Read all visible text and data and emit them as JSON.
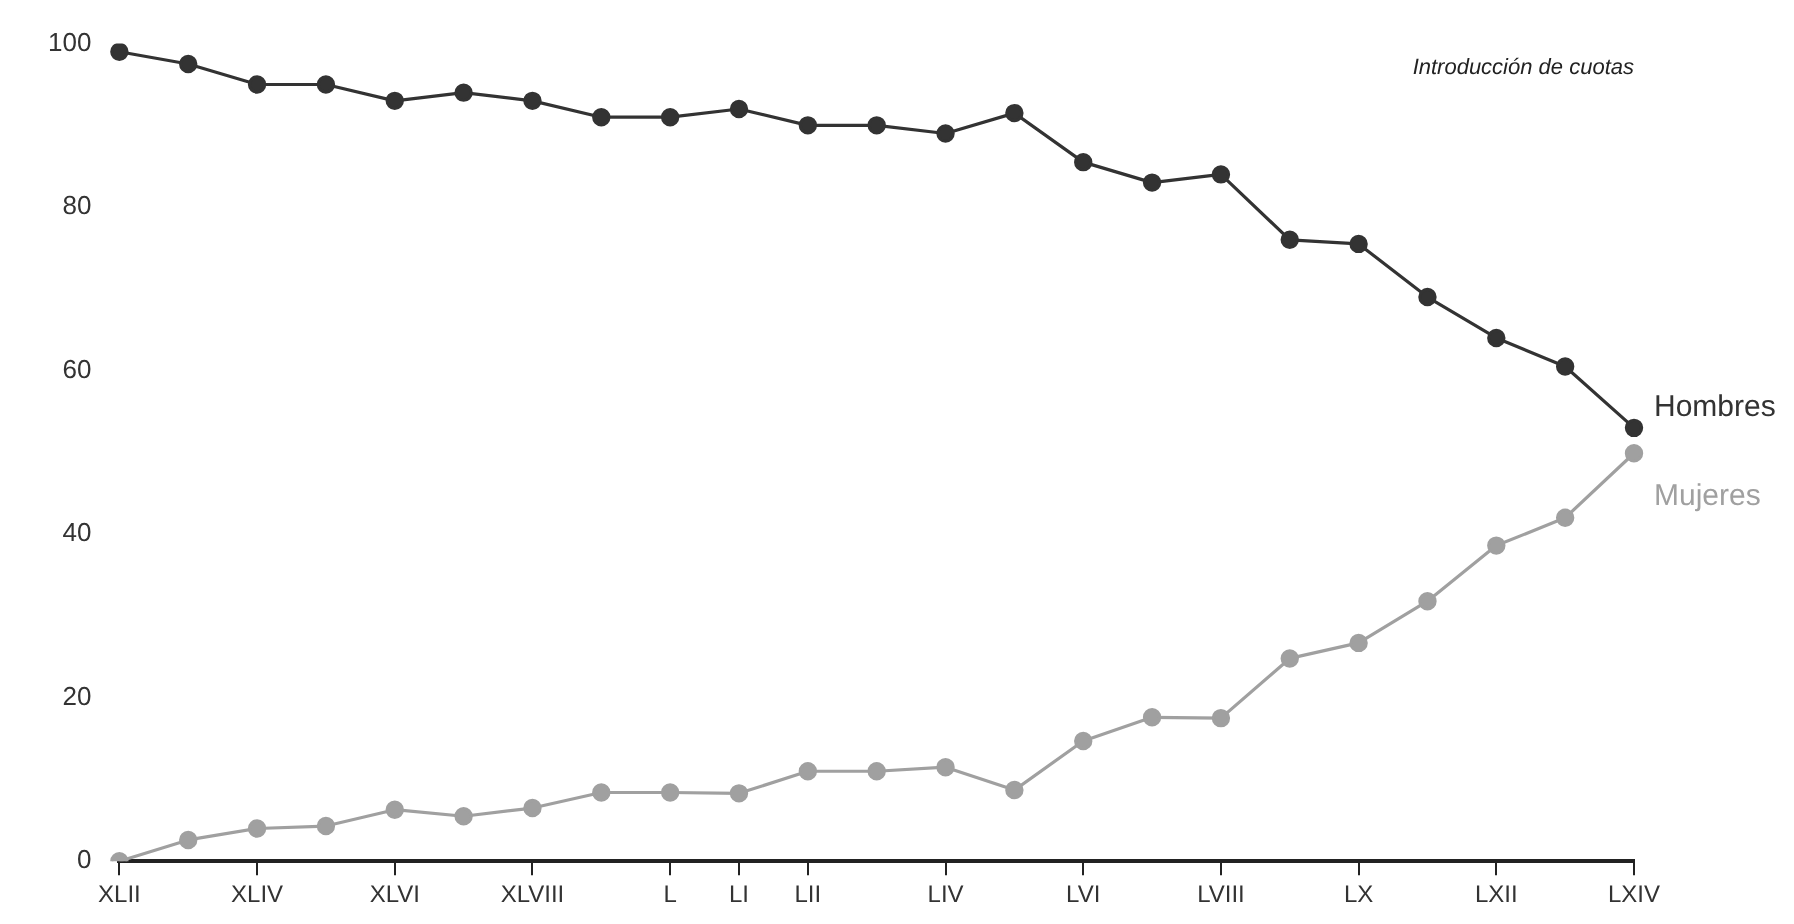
{
  "chart_data": {
    "type": "line",
    "annotations": [
      "Introducción de cuotas"
    ],
    "categories": [
      "XLII",
      null,
      "XLIV",
      null,
      "XLVI",
      null,
      "XLVIII",
      null,
      "L",
      "LI",
      "LII",
      null,
      "LIV",
      null,
      "LVI",
      null,
      "LVIII",
      null,
      "LX",
      null,
      "LXII",
      null,
      "LXIV"
    ],
    "series": [
      {
        "name": "Hombres",
        "color": "#333333",
        "values": [
          99,
          97.5,
          95,
          95,
          93,
          94,
          93,
          91,
          91,
          92,
          90,
          90,
          89,
          91.5,
          85.5,
          83,
          84,
          76,
          75.5,
          69,
          64,
          60.5,
          53
        ]
      },
      {
        "name": "Mujeres",
        "color": "#a0a0a0",
        "values": [
          0,
          2.6,
          4,
          4.3,
          6.3,
          5.5,
          6.5,
          8.4,
          8.4,
          8.3,
          11,
          11,
          11.5,
          8.7,
          14.7,
          17.6,
          17.5,
          24.8,
          26.7,
          31.8,
          38.6,
          42,
          49.9
        ]
      }
    ],
    "ylim": [
      0,
      100
    ],
    "yticks": [
      0,
      20,
      40,
      60,
      80,
      100
    ],
    "grid": false,
    "legend": false,
    "marker": "circle",
    "line_style": "solid"
  }
}
